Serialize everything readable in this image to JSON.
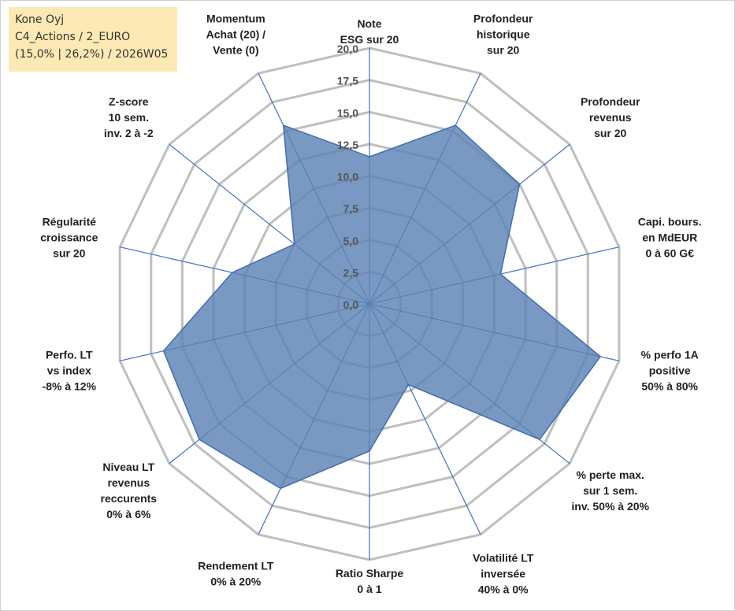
{
  "info_box": {
    "line1": "Kone Oyj",
    "line2": "C4_Actions / 2_EURO",
    "line3": "(15,0% | 26,2%) / 2026W05"
  },
  "colors": {
    "area_fill": "#5b82b5",
    "area_stroke": "#3f6db5",
    "grid": "#bfbfbf",
    "spoke": "#4472c4",
    "info_bg": "#fde9b4"
  },
  "chart_data": {
    "type": "radar",
    "title": "",
    "rmin": 0,
    "rmax": 20,
    "grid_levels": [
      0,
      2.5,
      5,
      7.5,
      10,
      12.5,
      15,
      17.5,
      20
    ],
    "tick_labels": [
      "0,0",
      "2,5",
      "5,0",
      "7,5",
      "10,0",
      "12,5",
      "15,0",
      "17,5",
      "20,0"
    ],
    "grid": true,
    "legend": "none",
    "axes": [
      {
        "lines": [
          "Note",
          "ESG sur 20"
        ],
        "value": 11.5
      },
      {
        "lines": [
          "Profondeur",
          "historique",
          "sur 20"
        ],
        "value": 15.5
      },
      {
        "lines": [
          "Profondeur",
          "revenus",
          "sur 20"
        ],
        "value": 15.0
      },
      {
        "lines": [
          "Capi. bours.",
          "en MdEUR",
          "0 à 60 G€"
        ],
        "value": 10.5
      },
      {
        "lines": [
          "% perfo 1A",
          "positive",
          "50% à 80%"
        ],
        "value": 18.5
      },
      {
        "lines": [
          "% perte max.",
          "sur 1 sem.",
          "inv. 50% à 20%"
        ],
        "value": 17.0
      },
      {
        "lines": [
          "Volatilité LT",
          "inversée",
          "40% à 0%"
        ],
        "value": 7.0
      },
      {
        "lines": [
          "Ratio Sharpe",
          "0 à 1"
        ],
        "value": 11.5
      },
      {
        "lines": [
          "Rendement LT",
          "0% à 20%"
        ],
        "value": 16.0
      },
      {
        "lines": [
          "Niveau LT",
          "revenus",
          "reccurents",
          "0% à 6%"
        ],
        "value": 17.0
      },
      {
        "lines": [
          "Perfo. LT",
          "vs index",
          "-8% à 12%"
        ],
        "value": 16.5
      },
      {
        "lines": [
          "Régularité",
          "croissance",
          "sur 20"
        ],
        "value": 11.0
      },
      {
        "lines": [
          "Z-score",
          "10 sem.",
          "inv. 2 à -2"
        ],
        "value": 7.5
      },
      {
        "lines": [
          "Momentum",
          "Achat (20) /",
          "Vente (0)"
        ],
        "value": 15.5
      }
    ]
  }
}
